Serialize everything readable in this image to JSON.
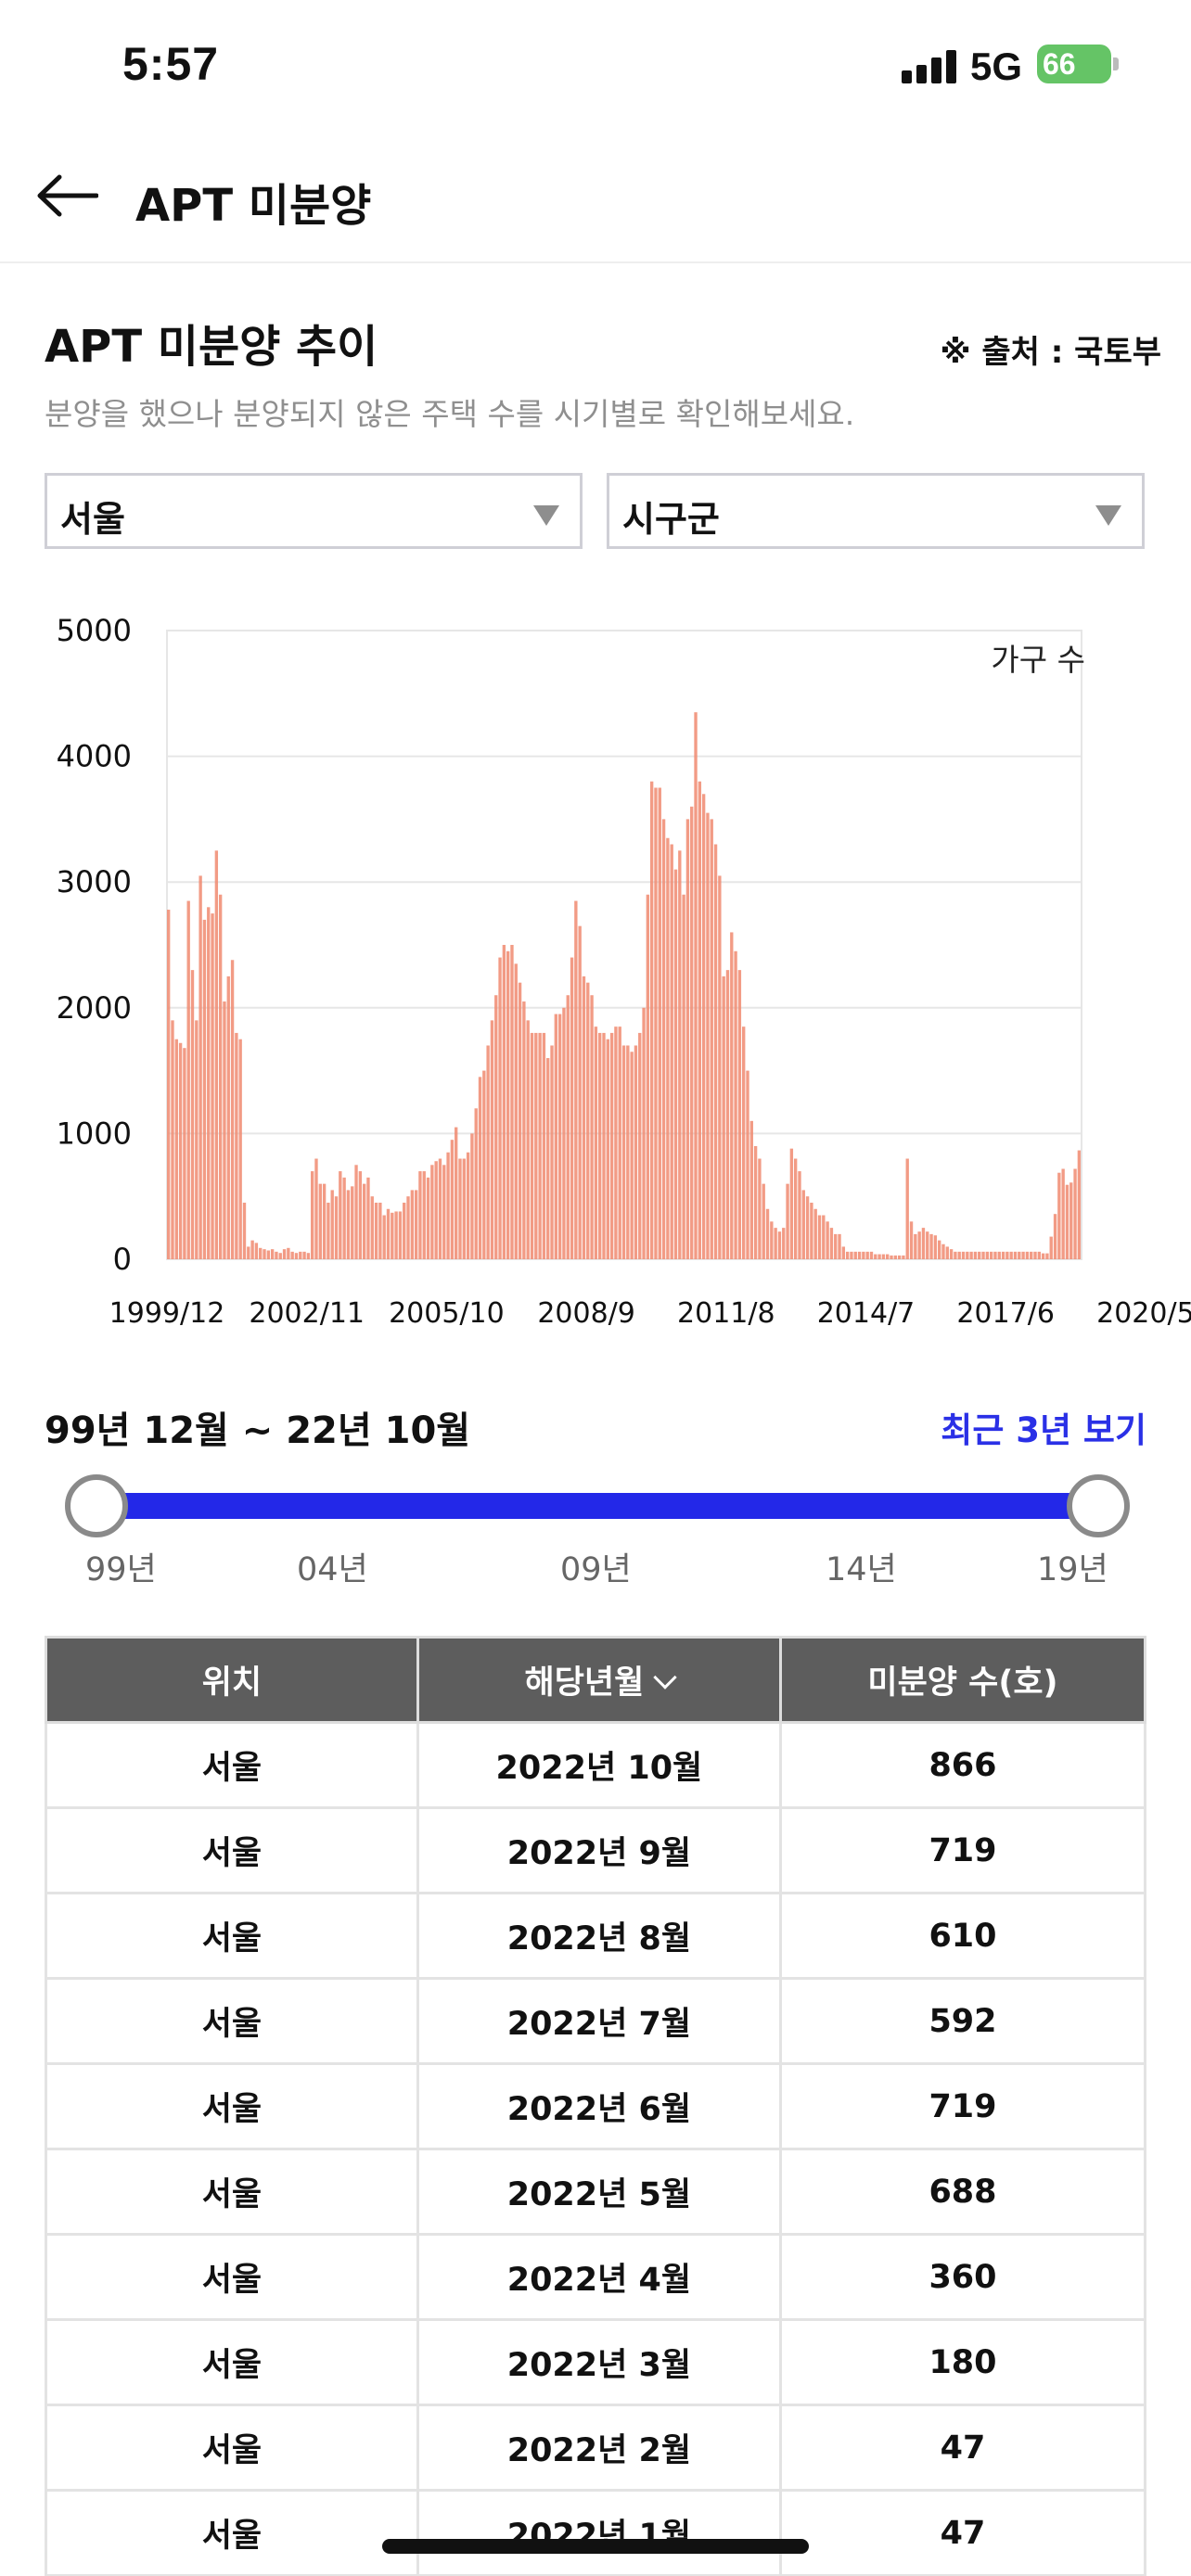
{
  "status": {
    "time": "5:57",
    "network": "5G",
    "battery": "66"
  },
  "header": {
    "title": "APT 미분양",
    "back_icon": "arrow-left-icon"
  },
  "section": {
    "title": "APT 미분양 추이",
    "source": "※ 출처 : 국토부",
    "subtitle": "분양을 했으나 분양되지 않은 주택 수를 시기별로 확인해보세요."
  },
  "filters": {
    "region": {
      "selected": "서울"
    },
    "district": {
      "selected": "시구군"
    }
  },
  "chart_data": {
    "type": "bar",
    "unit_label": "가구 수",
    "ylim": [
      0,
      5000
    ],
    "yticks": [
      0,
      1000,
      2000,
      3000,
      4000,
      5000
    ],
    "xticks": [
      "1999/12",
      "2002/11",
      "2005/10",
      "2008/9",
      "2011/8",
      "2014/7",
      "2017/6",
      "2020/5"
    ],
    "grid": true,
    "color": "#f08a70",
    "x_range": [
      "1999/12",
      "2022/10"
    ],
    "values": [
      2780,
      1900,
      1750,
      1720,
      1680,
      2850,
      2300,
      1900,
      3050,
      2700,
      2800,
      2750,
      3250,
      2900,
      2050,
      2250,
      2380,
      1800,
      1750,
      450,
      100,
      150,
      130,
      90,
      80,
      70,
      80,
      60,
      50,
      80,
      90,
      60,
      50,
      60,
      60,
      50,
      700,
      800,
      600,
      600,
      450,
      550,
      500,
      700,
      650,
      550,
      580,
      750,
      700,
      600,
      650,
      500,
      450,
      450,
      350,
      400,
      370,
      380,
      380,
      450,
      500,
      550,
      550,
      700,
      700,
      650,
      750,
      780,
      800,
      750,
      850,
      950,
      1050,
      800,
      800,
      850,
      1000,
      1200,
      1450,
      1500,
      1700,
      1900,
      2100,
      2400,
      2500,
      2450,
      2500,
      2350,
      2200,
      2050,
      1900,
      1800,
      1800,
      1800,
      1800,
      1600,
      1700,
      1950,
      1950,
      2000,
      2100,
      2400,
      2850,
      2650,
      2250,
      2200,
      2100,
      1850,
      1800,
      1800,
      1750,
      1800,
      1850,
      1850,
      1700,
      1700,
      1650,
      1700,
      1800,
      2000,
      2900,
      3800,
      3750,
      3750,
      3500,
      3350,
      3300,
      3100,
      3250,
      2900,
      3500,
      3600,
      4350,
      3800,
      3700,
      3550,
      3500,
      3300,
      3050,
      2250,
      2300,
      2600,
      2450,
      2300,
      1850,
      1500,
      1100,
      900,
      800,
      600,
      400,
      300,
      250,
      220,
      250,
      600,
      880,
      800,
      700,
      550,
      500,
      450,
      400,
      350,
      350,
      300,
      250,
      200,
      200,
      100,
      60,
      60,
      60,
      60,
      60,
      60,
      60,
      40,
      40,
      40,
      40,
      30,
      30,
      30,
      30,
      800,
      300,
      200,
      220,
      250,
      220,
      200,
      190,
      150,
      120,
      100,
      80,
      60,
      60,
      60,
      60,
      60,
      60,
      60,
      60,
      60,
      60,
      60,
      60,
      60,
      60,
      60,
      60,
      60,
      60,
      60,
      60,
      60,
      60,
      47,
      47,
      180,
      360,
      688,
      719,
      592,
      610,
      719,
      866
    ]
  },
  "range": {
    "text": "99년 12월 ~ 22년 10월",
    "recent_link": "최근 3년 보기",
    "labels": [
      "99년",
      "04년",
      "09년",
      "14년",
      "19년"
    ]
  },
  "table": {
    "headers": [
      "위치",
      "해당년월",
      "미분양 수(호)"
    ],
    "rows": [
      [
        "서울",
        "2022년 10월",
        "866"
      ],
      [
        "서울",
        "2022년 9월",
        "719"
      ],
      [
        "서울",
        "2022년 8월",
        "610"
      ],
      [
        "서울",
        "2022년 7월",
        "592"
      ],
      [
        "서울",
        "2022년 6월",
        "719"
      ],
      [
        "서울",
        "2022년 5월",
        "688"
      ],
      [
        "서울",
        "2022년 4월",
        "360"
      ],
      [
        "서울",
        "2022년 3월",
        "180"
      ],
      [
        "서울",
        "2022년 2월",
        "47"
      ],
      [
        "서울",
        "2022년 1월",
        "47"
      ]
    ]
  }
}
